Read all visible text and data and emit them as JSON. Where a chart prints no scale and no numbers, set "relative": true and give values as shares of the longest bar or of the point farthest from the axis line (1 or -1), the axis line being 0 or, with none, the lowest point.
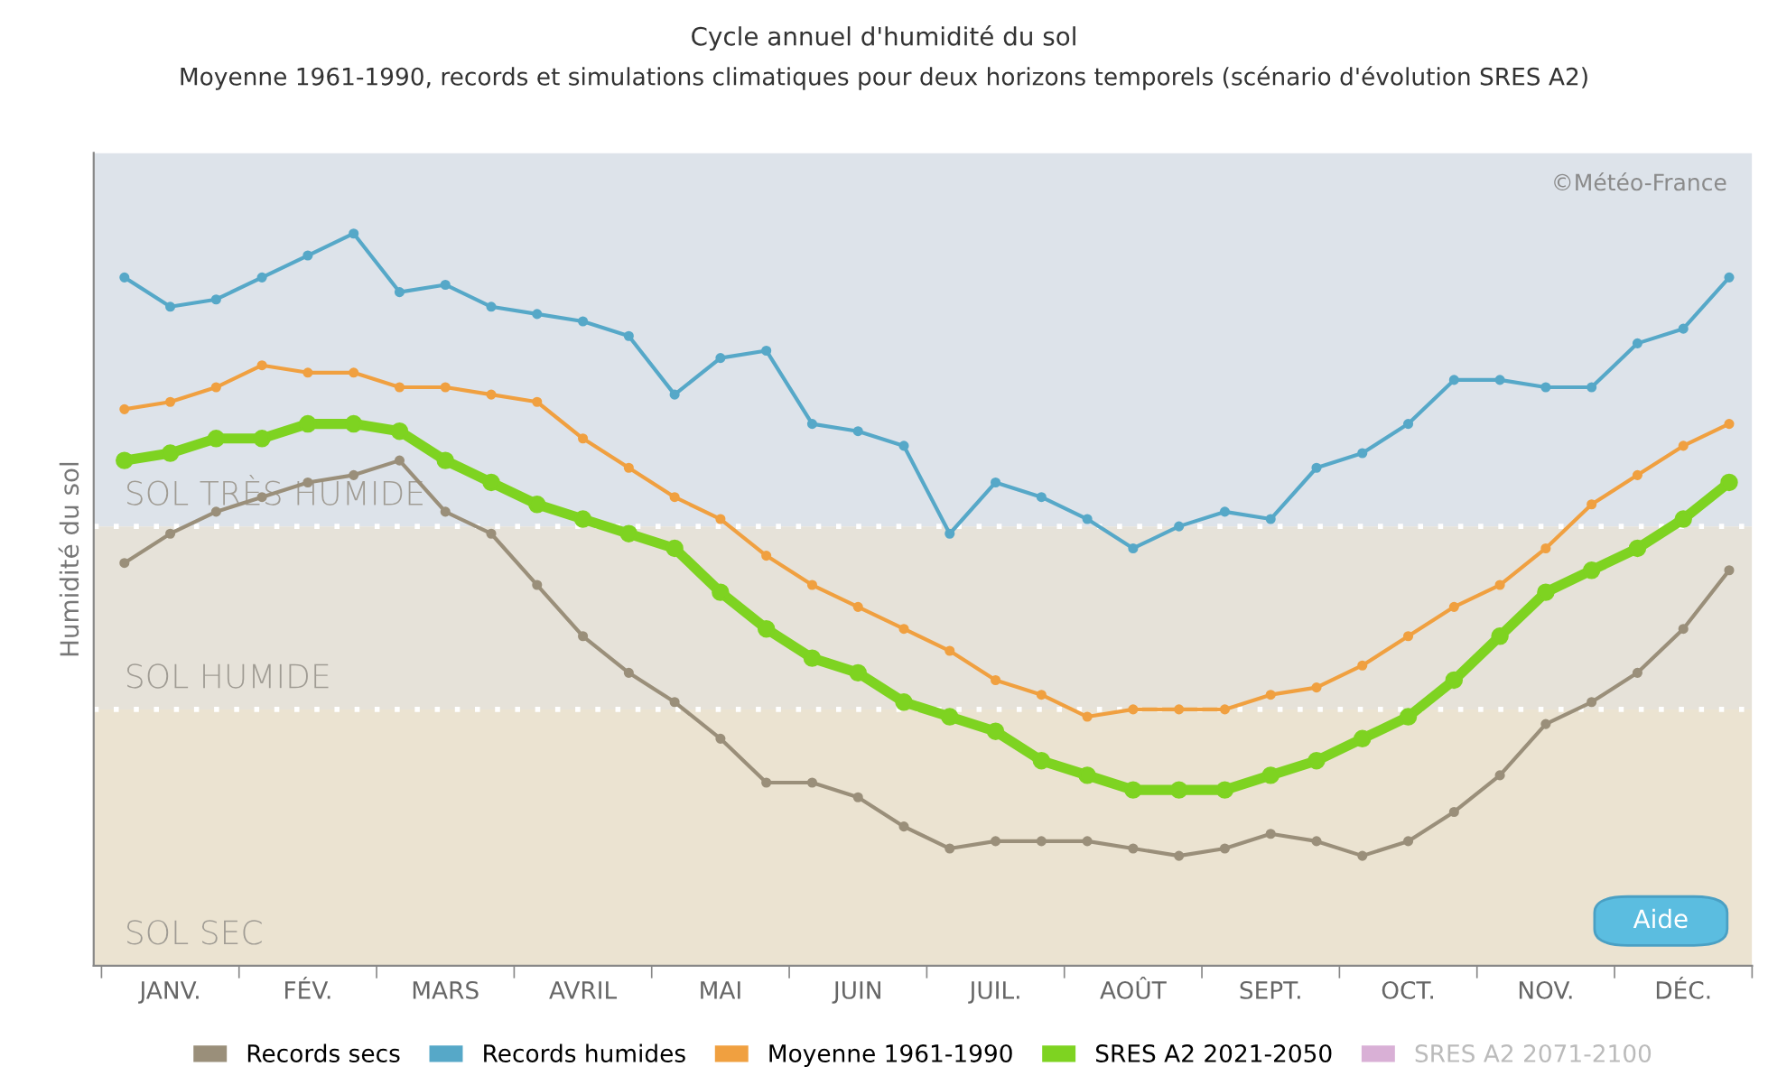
{
  "chart_data": {
    "type": "line",
    "title": "Cycle annuel d'humidité du sol",
    "subtitle": "Moyenne 1961-1990, records et simulations climatiques pour deux horizons temporels (scénario d'évolution SRES A2)",
    "ylabel": "Humidité du sol",
    "relative": true,
    "categories": [
      null,
      "JANV.",
      null,
      null,
      "FÉV.",
      null,
      null,
      "MARS",
      null,
      null,
      "AVRIL",
      null,
      null,
      "MAI",
      null,
      null,
      "JUIN",
      null,
      null,
      "JUIL.",
      null,
      null,
      "AOÛT",
      null,
      null,
      "SEPT.",
      null,
      null,
      "OCT.",
      null,
      null,
      "NOV.",
      null,
      null,
      "DÉC.",
      null
    ],
    "series": [
      {
        "name": "Records secs",
        "color": "#9a8f7a",
        "values": [
          0.55,
          0.59,
          0.62,
          0.64,
          0.66,
          0.67,
          0.69,
          0.62,
          0.59,
          0.52,
          0.45,
          0.4,
          0.36,
          0.31,
          0.25,
          0.25,
          0.23,
          0.19,
          0.16,
          0.17,
          0.17,
          0.17,
          0.16,
          0.15,
          0.16,
          0.18,
          0.17,
          0.15,
          0.17,
          0.21,
          0.26,
          0.33,
          0.36,
          0.4,
          0.46,
          0.54
        ]
      },
      {
        "name": "Records humides",
        "color": "#56a8c8",
        "values": [
          0.94,
          0.9,
          0.91,
          0.94,
          0.97,
          1.0,
          0.92,
          0.93,
          0.9,
          0.89,
          0.88,
          0.86,
          0.78,
          0.83,
          0.84,
          0.74,
          0.73,
          0.71,
          0.59,
          0.66,
          0.64,
          0.61,
          0.57,
          0.6,
          0.62,
          0.61,
          0.68,
          0.7,
          0.74,
          0.8,
          0.8,
          0.79,
          0.79,
          0.85,
          0.87,
          0.94
        ]
      },
      {
        "name": "Moyenne 1961-1990",
        "color": "#f0a040",
        "values": [
          0.76,
          0.77,
          0.79,
          0.82,
          0.81,
          0.81,
          0.79,
          0.79,
          0.78,
          0.77,
          0.72,
          0.68,
          0.64,
          0.61,
          0.56,
          0.52,
          0.49,
          0.46,
          0.43,
          0.39,
          0.37,
          0.34,
          0.35,
          0.35,
          0.35,
          0.37,
          0.38,
          0.41,
          0.45,
          0.49,
          0.52,
          0.57,
          0.63,
          0.67,
          0.71,
          0.74
        ]
      },
      {
        "name": "SRES A2 2021-2050",
        "color": "#7ed321",
        "values": [
          0.69,
          0.7,
          0.72,
          0.72,
          0.74,
          0.74,
          0.73,
          0.69,
          0.66,
          0.63,
          0.61,
          0.59,
          0.57,
          0.51,
          0.46,
          0.42,
          0.4,
          0.36,
          0.34,
          0.32,
          0.28,
          0.26,
          0.24,
          0.24,
          0.24,
          0.26,
          0.28,
          0.31,
          0.34,
          0.39,
          0.45,
          0.51,
          0.54,
          0.57,
          0.61,
          0.66
        ]
      },
      {
        "name": "SRES A2 2071-2100",
        "color": "#d9b0d6",
        "values": [
          null,
          null,
          null,
          null,
          null,
          null,
          null,
          null,
          null,
          null,
          null,
          null,
          null,
          null,
          null,
          null,
          null,
          null,
          null,
          null,
          null,
          null,
          null,
          null,
          null,
          null,
          null,
          null,
          null,
          null,
          null,
          null,
          null,
          null,
          null,
          null
        ]
      }
    ],
    "bands": [
      {
        "axis": "y",
        "from": 0.6,
        "to": 1.11,
        "label": "SOL TRÈS HUMIDE",
        "color": "#dde3ea"
      },
      {
        "axis": "y",
        "from": 0.35,
        "to": 0.6,
        "label": "SOL HUMIDE",
        "color": "#e6e2d9"
      },
      {
        "axis": "y",
        "from": 0,
        "to": 0.35,
        "label": "SOL SEC",
        "color": "#ebe3d1"
      }
    ],
    "ref_lines": [
      {
        "axis": "y",
        "value": 0.6,
        "color": "#ffffff",
        "line_style": "dotted"
      },
      {
        "axis": "y",
        "value": 0.35,
        "color": "#ffffff",
        "line_style": "dotted"
      }
    ],
    "marker": "circle",
    "legend": "bottom",
    "grid": false,
    "annotations": [
      "©Météo-France",
      "Aide"
    ]
  }
}
